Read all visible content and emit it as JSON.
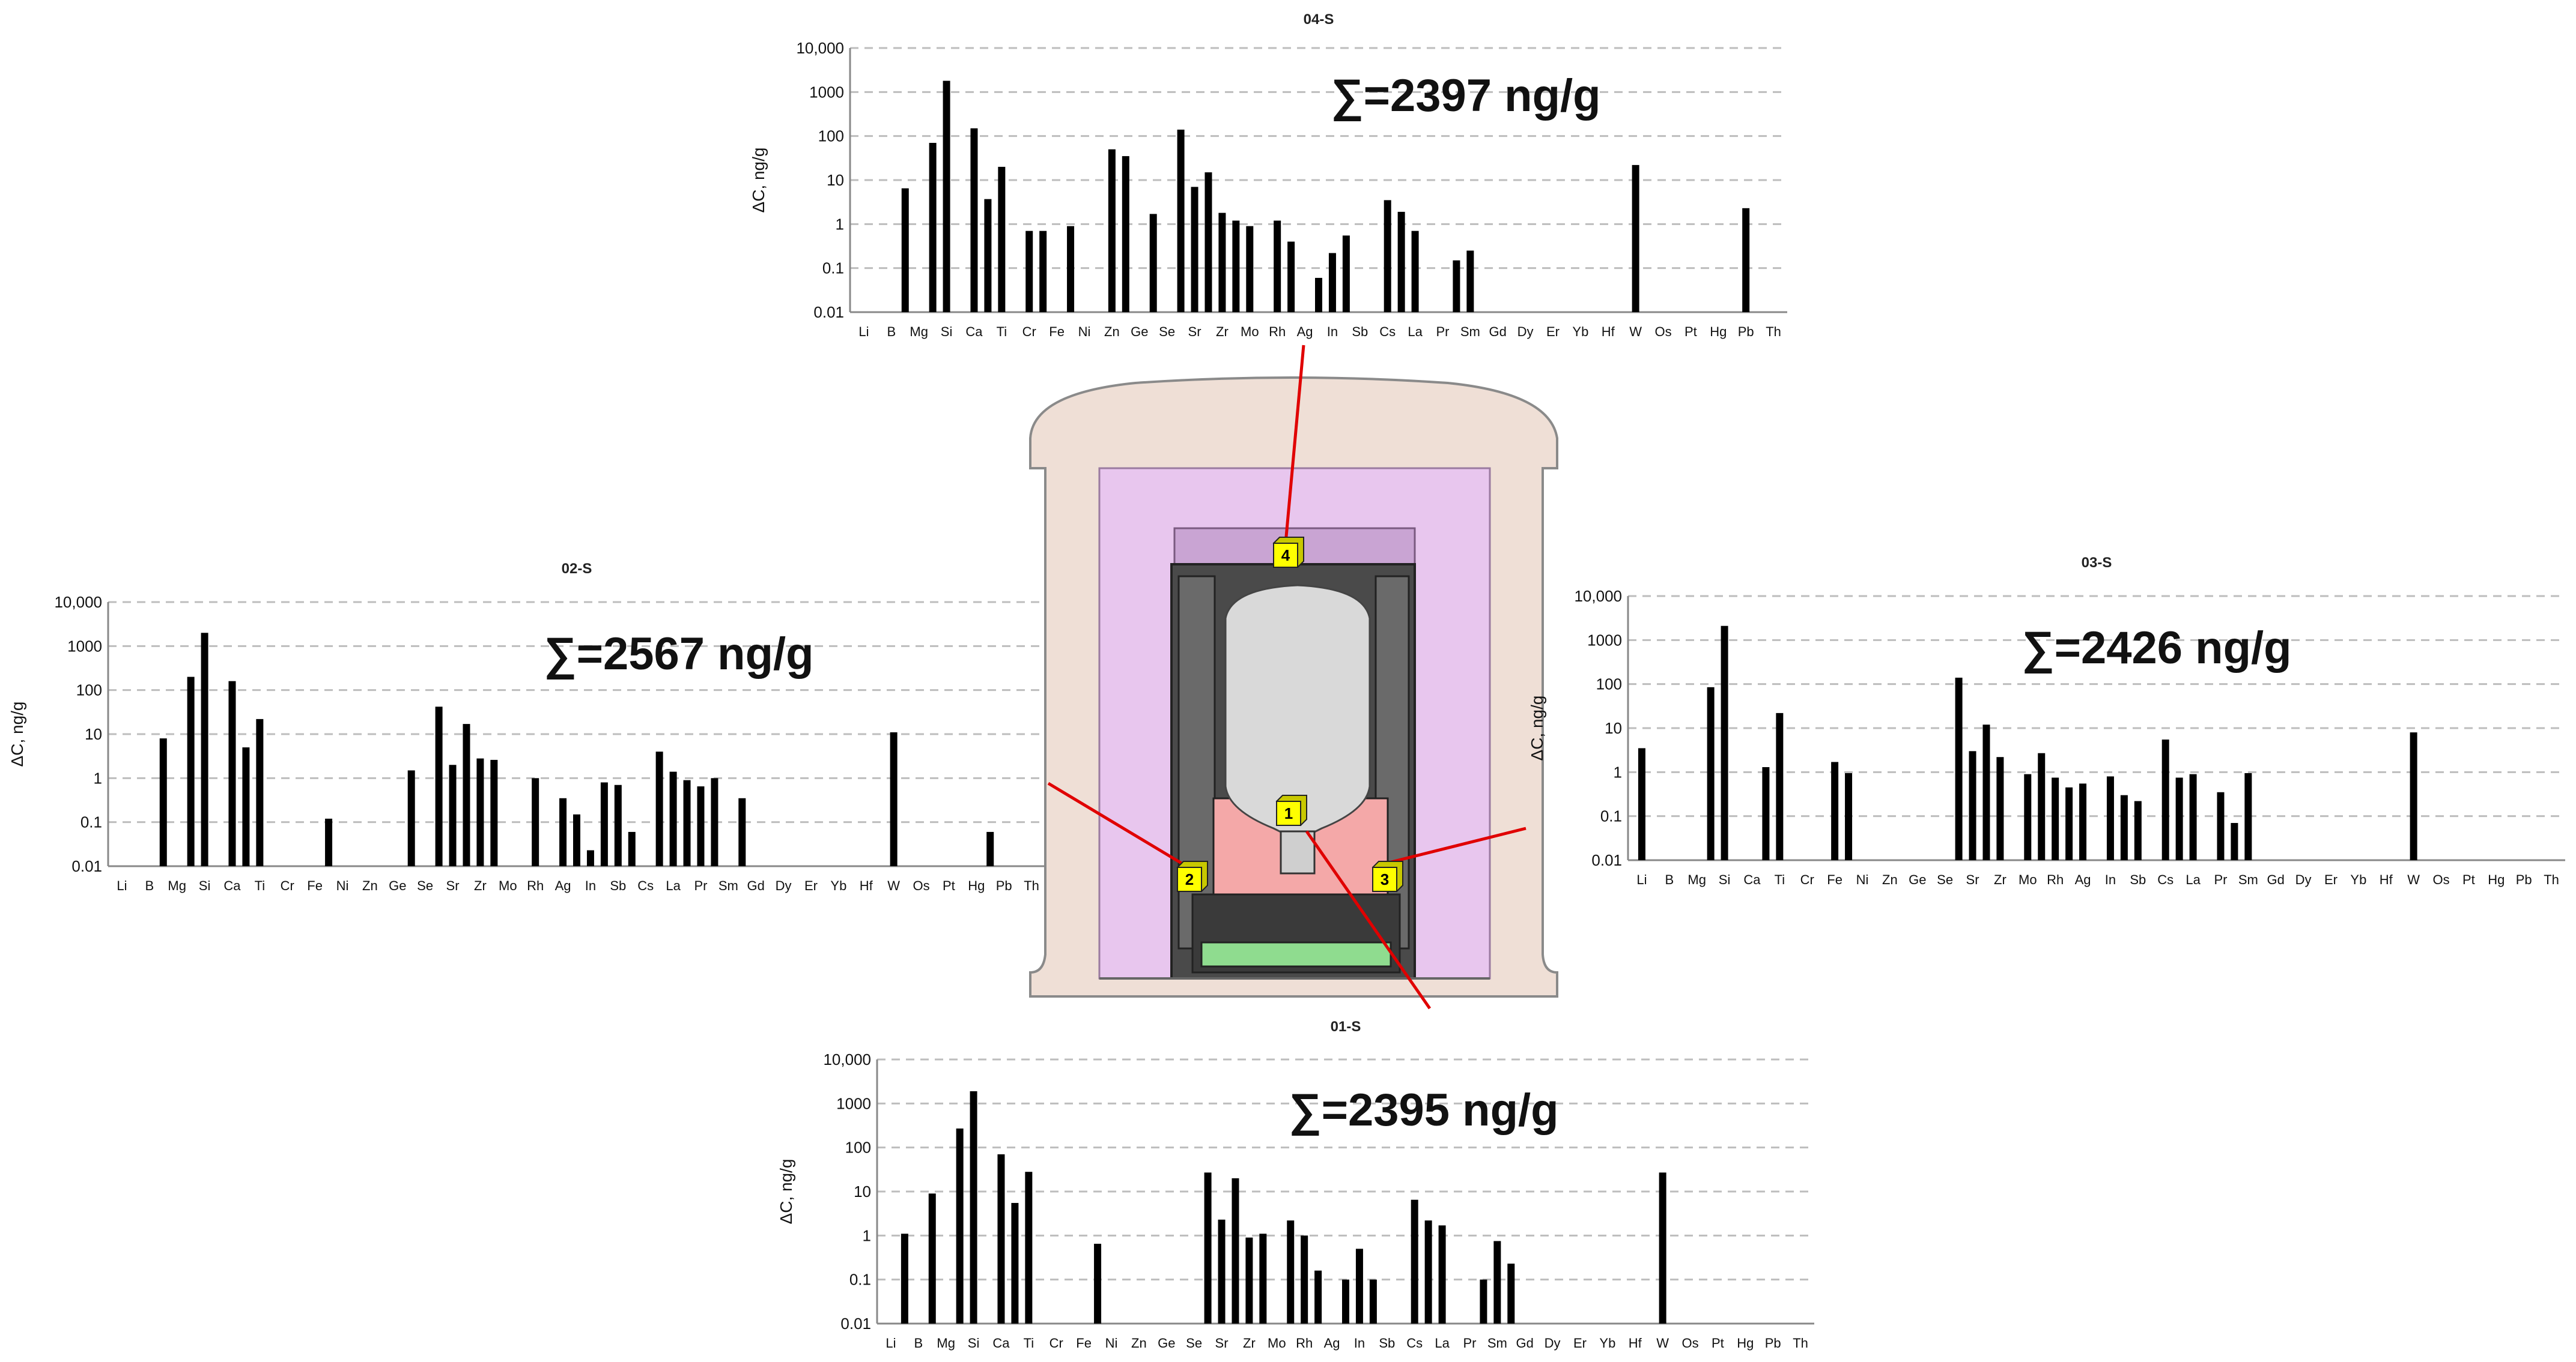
{
  "elements": [
    "Li",
    "B",
    "Mg",
    "Si",
    "Ca",
    "Ti",
    "Cr",
    "Fe",
    "Ni",
    "Zn",
    "Ge",
    "Se",
    "Sr",
    "Zr",
    "Mo",
    "Rh",
    "Ag",
    "In",
    "Sb",
    "Cs",
    "La",
    "Pr",
    "Sm",
    "Gd",
    "Dy",
    "Er",
    "Yb",
    "Hf",
    "W",
    "Os",
    "Pt",
    "Hg",
    "Pb",
    "Th"
  ],
  "y_ticks": [
    "0.01",
    "0.1",
    "1",
    "10",
    "100",
    "1000",
    "10,000"
  ],
  "y_axis_label": "ΔC, ng/g",
  "colors": {
    "bar": "#000000",
    "grid": "#bdbdbd",
    "leader_line": "#e00000",
    "marker": "#ffff00",
    "furnace_outer": "#efdfd6",
    "furnace_insulation": "#e8c6ee",
    "crucible_holder": "#f4a8a8",
    "base_plate": "#8fdc8f"
  },
  "markers": [
    "1",
    "2",
    "3",
    "4"
  ],
  "chart_data": [
    {
      "id": "04-S",
      "type": "bar",
      "title": "04-S",
      "sum_label": "∑=2397 ng/g",
      "ylabel": "ΔC, ng/g",
      "yscale": "log",
      "ylim": [
        0.01,
        10000
      ],
      "bars": [
        {
          "x": 1.5,
          "v": 6.5
        },
        {
          "x": 2.5,
          "v": 70
        },
        {
          "x": 3,
          "v": 1800
        },
        {
          "x": 4,
          "v": 150
        },
        {
          "x": 4.5,
          "v": 3.7
        },
        {
          "x": 5,
          "v": 20
        },
        {
          "x": 6,
          "v": 0.7
        },
        {
          "x": 6.5,
          "v": 0.7
        },
        {
          "x": 7.5,
          "v": 0.9
        },
        {
          "x": 9,
          "v": 50
        },
        {
          "x": 9.5,
          "v": 35
        },
        {
          "x": 10.5,
          "v": 1.7
        },
        {
          "x": 11.5,
          "v": 140
        },
        {
          "x": 12,
          "v": 7
        },
        {
          "x": 12.5,
          "v": 15
        },
        {
          "x": 13,
          "v": 1.8
        },
        {
          "x": 13.5,
          "v": 1.2
        },
        {
          "x": 14,
          "v": 0.9
        },
        {
          "x": 15,
          "v": 1.2
        },
        {
          "x": 15.5,
          "v": 0.4
        },
        {
          "x": 16.5,
          "v": 0.06
        },
        {
          "x": 17,
          "v": 0.22
        },
        {
          "x": 17.5,
          "v": 0.55
        },
        {
          "x": 19,
          "v": 3.5
        },
        {
          "x": 19.5,
          "v": 1.9
        },
        {
          "x": 20,
          "v": 0.7
        },
        {
          "x": 21.5,
          "v": 0.15
        },
        {
          "x": 22,
          "v": 0.25
        },
        {
          "x": 28,
          "v": 22
        },
        {
          "x": 32,
          "v": 2.3
        }
      ]
    },
    {
      "id": "02-S",
      "type": "bar",
      "title": "02-S",
      "sum_label": "∑=2567 ng/g",
      "ylabel": "ΔC, ng/g",
      "yscale": "log",
      "ylim": [
        0.01,
        10000
      ],
      "bars": [
        {
          "x": 1.5,
          "v": 8
        },
        {
          "x": 2.5,
          "v": 200
        },
        {
          "x": 3,
          "v": 2000
        },
        {
          "x": 4,
          "v": 160
        },
        {
          "x": 4.5,
          "v": 5
        },
        {
          "x": 5,
          "v": 22
        },
        {
          "x": 7.5,
          "v": 0.12
        },
        {
          "x": 10.5,
          "v": 1.5
        },
        {
          "x": 11.5,
          "v": 42
        },
        {
          "x": 12,
          "v": 2
        },
        {
          "x": 12.5,
          "v": 17
        },
        {
          "x": 13,
          "v": 2.8
        },
        {
          "x": 13.5,
          "v": 2.6
        },
        {
          "x": 15,
          "v": 1
        },
        {
          "x": 16,
          "v": 0.35
        },
        {
          "x": 16.5,
          "v": 0.15
        },
        {
          "x": 17,
          "v": 0.023
        },
        {
          "x": 17.5,
          "v": 0.8
        },
        {
          "x": 18,
          "v": 0.7
        },
        {
          "x": 18.5,
          "v": 0.06
        },
        {
          "x": 19.5,
          "v": 4
        },
        {
          "x": 20,
          "v": 1.4
        },
        {
          "x": 20.5,
          "v": 0.9
        },
        {
          "x": 21,
          "v": 0.65
        },
        {
          "x": 21.5,
          "v": 1
        },
        {
          "x": 22.5,
          "v": 0.35
        },
        {
          "x": 28,
          "v": 11
        },
        {
          "x": 31.5,
          "v": 0.06
        }
      ]
    },
    {
      "id": "03-S",
      "type": "bar",
      "title": "03-S",
      "sum_label": "∑=2426 ng/g",
      "ylabel": "ΔC, ng/g",
      "yscale": "log",
      "ylim": [
        0.01,
        10000
      ],
      "bars": [
        {
          "x": 0,
          "v": 3.5
        },
        {
          "x": 2.5,
          "v": 85
        },
        {
          "x": 3,
          "v": 2100
        },
        {
          "x": 4.5,
          "v": 1.3
        },
        {
          "x": 5,
          "v": 22
        },
        {
          "x": 7,
          "v": 1.7
        },
        {
          "x": 7.5,
          "v": 0.95
        },
        {
          "x": 11.5,
          "v": 140
        },
        {
          "x": 12,
          "v": 3
        },
        {
          "x": 12.5,
          "v": 12
        },
        {
          "x": 13,
          "v": 2.2
        },
        {
          "x": 14,
          "v": 0.9
        },
        {
          "x": 14.5,
          "v": 2.7
        },
        {
          "x": 15,
          "v": 0.75
        },
        {
          "x": 15.5,
          "v": 0.45
        },
        {
          "x": 16,
          "v": 0.55
        },
        {
          "x": 17,
          "v": 0.8
        },
        {
          "x": 17.5,
          "v": 0.3
        },
        {
          "x": 18,
          "v": 0.22
        },
        {
          "x": 19,
          "v": 5.5
        },
        {
          "x": 19.5,
          "v": 0.75
        },
        {
          "x": 20,
          "v": 0.9
        },
        {
          "x": 21,
          "v": 0.35
        },
        {
          "x": 21.5,
          "v": 0.07
        },
        {
          "x": 22,
          "v": 0.95
        },
        {
          "x": 28,
          "v": 8
        }
      ]
    },
    {
      "id": "01-S",
      "type": "bar",
      "title": "01-S",
      "sum_label": "∑=2395 ng/g",
      "ylabel": "ΔC, ng/g",
      "yscale": "log",
      "ylim": [
        0.01,
        10000
      ],
      "bars": [
        {
          "x": 0.5,
          "v": 1.1
        },
        {
          "x": 1.5,
          "v": 9
        },
        {
          "x": 2.5,
          "v": 270
        },
        {
          "x": 3,
          "v": 1900
        },
        {
          "x": 4,
          "v": 70
        },
        {
          "x": 4.5,
          "v": 5.5
        },
        {
          "x": 5,
          "v": 28
        },
        {
          "x": 7.5,
          "v": 0.65
        },
        {
          "x": 11.5,
          "v": 27
        },
        {
          "x": 12,
          "v": 2.3
        },
        {
          "x": 12.5,
          "v": 20
        },
        {
          "x": 13,
          "v": 0.9
        },
        {
          "x": 13.5,
          "v": 1.1
        },
        {
          "x": 14.5,
          "v": 2.2
        },
        {
          "x": 15,
          "v": 1
        },
        {
          "x": 15.5,
          "v": 0.16
        },
        {
          "x": 16.5,
          "v": 0.1
        },
        {
          "x": 17,
          "v": 0.5
        },
        {
          "x": 17.5,
          "v": 0.1
        },
        {
          "x": 19,
          "v": 6.5
        },
        {
          "x": 19.5,
          "v": 2.2
        },
        {
          "x": 20,
          "v": 1.7
        },
        {
          "x": 21.5,
          "v": 0.1
        },
        {
          "x": 22,
          "v": 0.75
        },
        {
          "x": 22.5,
          "v": 0.23
        },
        {
          "x": 28,
          "v": 27
        }
      ]
    }
  ]
}
